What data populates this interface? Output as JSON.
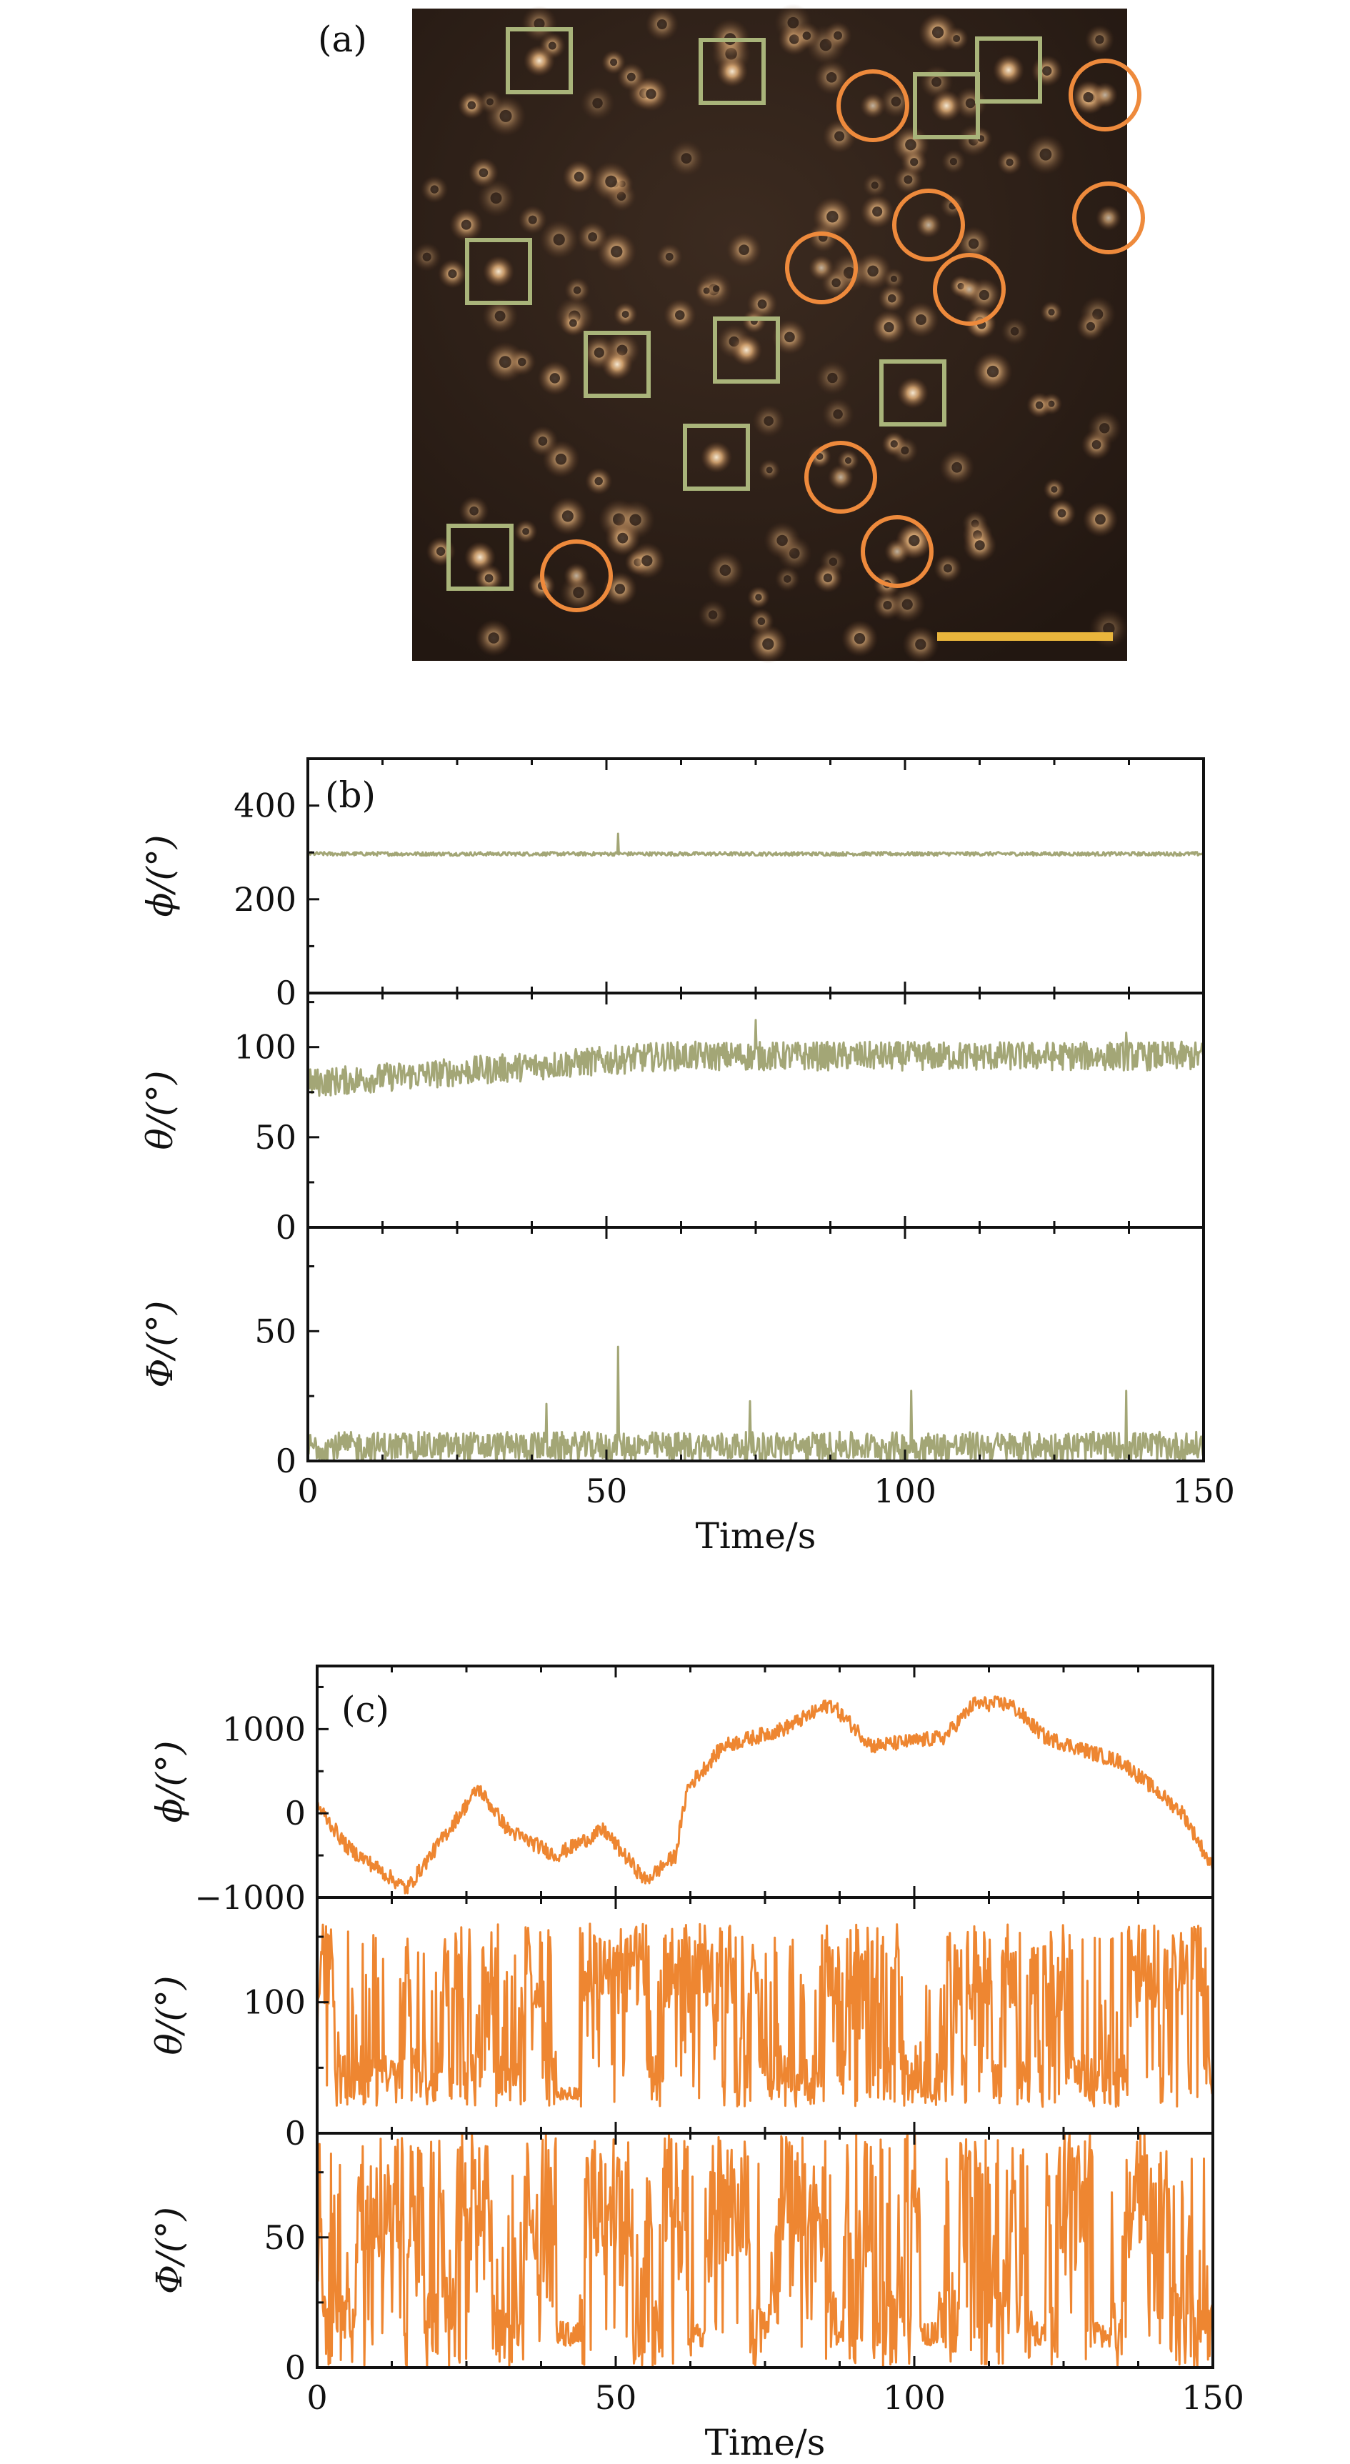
{
  "panels": {
    "a": {
      "label": "(a)"
    },
    "b": {
      "label": "(b)",
      "xlabel": "Time/s"
    },
    "c": {
      "label": "(c)",
      "xlabel": "Time/s"
    }
  },
  "colors": {
    "panel_b_trace": "#a3a676",
    "panel_c_trace": "#ee8631",
    "micrograph_background": "#2e211a",
    "square_marker": "#a9b47a",
    "circle_marker": "#ee8a3c",
    "scale_bar": "#e9b53c"
  },
  "chart_data": [
    {
      "id": "b1",
      "type": "line",
      "xlabel": "",
      "ylabel": "ϕ/(°)",
      "xlim": [
        0,
        150
      ],
      "ylim": [
        0,
        500
      ],
      "yticks": [
        0,
        200,
        400
      ],
      "xticks": [
        0,
        50,
        100,
        150
      ],
      "show_xtick_labels": false,
      "series": [
        {
          "baseline": 297,
          "noise": 4,
          "spikes": [
            [
              52,
              340
            ]
          ]
        }
      ]
    },
    {
      "id": "b2",
      "type": "line",
      "xlabel": "",
      "ylabel": "θ/(°)",
      "xlim": [
        0,
        150
      ],
      "ylim": [
        0,
        130
      ],
      "yticks": [
        0,
        50,
        100
      ],
      "xticks": [
        0,
        50,
        100,
        150
      ],
      "show_xtick_labels": false,
      "series": [
        {
          "baseline_start": 80,
          "baseline_end": 95,
          "noise": 8,
          "spikes": [
            [
              75,
              115
            ],
            [
              137,
              108
            ]
          ]
        }
      ]
    },
    {
      "id": "b3",
      "type": "line",
      "xlabel": "Time/s",
      "ylabel": "Φ/(°)",
      "xlim": [
        0,
        150
      ],
      "ylim": [
        0,
        90
      ],
      "yticks": [
        0,
        50
      ],
      "xticks": [
        0,
        50,
        100,
        150
      ],
      "show_xtick_labels": true,
      "series": [
        {
          "baseline": 6,
          "noise": 8,
          "spikes": [
            [
              52,
              44
            ],
            [
              40,
              22
            ],
            [
              74,
              23
            ],
            [
              101,
              27
            ],
            [
              137,
              27
            ]
          ]
        }
      ]
    },
    {
      "id": "c1",
      "type": "line",
      "xlabel": "",
      "ylabel": "ϕ/(°)",
      "xlim": [
        0,
        150
      ],
      "ylim": [
        -1000,
        1750
      ],
      "yticks": [
        -1000,
        0,
        1000
      ],
      "ytick_labels": [
        "−1000",
        "0",
        "1000"
      ],
      "xticks": [
        0,
        50,
        100,
        150
      ],
      "show_xtick_labels": false,
      "series": [
        {
          "noise": 90,
          "path": [
            [
              0,
              100
            ],
            [
              5,
              -400
            ],
            [
              15,
              -900
            ],
            [
              20,
              -400
            ],
            [
              27,
              300
            ],
            [
              32,
              -200
            ],
            [
              40,
              -500
            ],
            [
              48,
              -200
            ],
            [
              55,
              -800
            ],
            [
              60,
              -500
            ],
            [
              62,
              300
            ],
            [
              68,
              800
            ],
            [
              78,
              1000
            ],
            [
              86,
              1300
            ],
            [
              93,
              800
            ],
            [
              105,
              900
            ],
            [
              110,
              1300
            ],
            [
              116,
              1300
            ],
            [
              122,
              900
            ],
            [
              135,
              600
            ],
            [
              140,
              300
            ],
            [
              145,
              0
            ],
            [
              150,
              -650
            ]
          ]
        }
      ]
    },
    {
      "id": "c2",
      "type": "line",
      "xlabel": "",
      "ylabel": "θ/(°)",
      "xlim": [
        0,
        150
      ],
      "ylim": [
        0,
        180
      ],
      "yticks": [
        0,
        100
      ],
      "xticks": [
        0,
        50,
        100,
        150
      ],
      "show_xtick_labels": false,
      "series": [
        {
          "telegraph": true,
          "low_range": [
            20,
            60
          ],
          "high_range": [
            95,
            160
          ],
          "gaps": [
            [
              40,
              44,
              25
            ]
          ]
        }
      ]
    },
    {
      "id": "c3",
      "type": "line",
      "xlabel": "Time/s",
      "ylabel": "Φ/(°)",
      "xlim": [
        0,
        150
      ],
      "ylim": [
        0,
        90
      ],
      "yticks": [
        0,
        50
      ],
      "xticks": [
        0,
        50,
        100,
        150
      ],
      "show_xtick_labels": true,
      "series": [
        {
          "telegraph": true,
          "low_range": [
            0,
            30
          ],
          "high_range": [
            40,
            90
          ],
          "gaps": [
            [
              40,
              44,
              8
            ],
            [
              63,
              65,
              8
            ],
            [
              101,
              104,
              8
            ],
            [
              120,
              122,
              8
            ],
            [
              130,
              133,
              8
            ]
          ]
        }
      ]
    }
  ]
}
